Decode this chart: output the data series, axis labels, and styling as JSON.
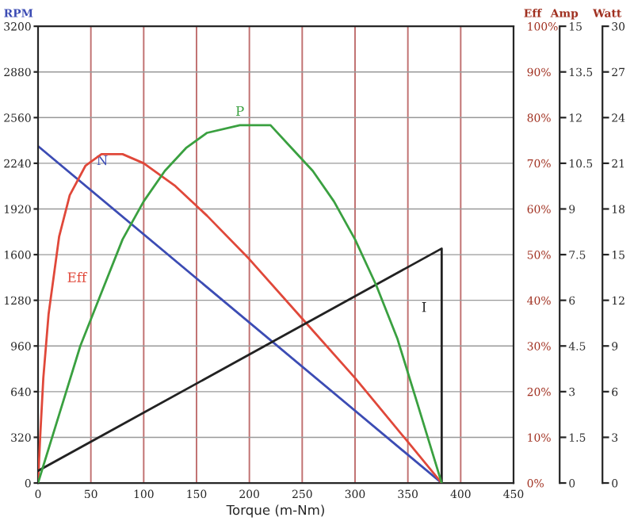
{
  "chart_data": [
    {
      "type": "line",
      "xlabel": "Torque (m-Nm)",
      "ylabel": "RPM",
      "y2label": "Eff",
      "y3label": "Amp",
      "xlim": [
        0,
        450
      ],
      "xticks": [
        0,
        50,
        100,
        150,
        200,
        250,
        300,
        350,
        400,
        450
      ],
      "ylim": [
        0,
        3200
      ],
      "yticks": [
        0,
        320,
        640,
        960,
        1280,
        1600,
        1920,
        2240,
        2560,
        2880,
        3200
      ],
      "y2lim": [
        0,
        100
      ],
      "y2ticks": [
        {
          "value": 0,
          "label": "0%"
        },
        {
          "value": 10,
          "label": "10%"
        },
        {
          "value": 20,
          "label": "20%"
        },
        {
          "value": 30,
          "label": "30%"
        },
        {
          "value": 40,
          "label": "40%"
        },
        {
          "value": 50,
          "label": "50%"
        },
        {
          "value": 60,
          "label": "60%"
        },
        {
          "value": 70,
          "label": "70%"
        },
        {
          "value": 80,
          "label": "80%"
        },
        {
          "value": 90,
          "label": "90%"
        },
        {
          "value": 100,
          "label": "100%"
        }
      ],
      "y3lim": [
        0,
        15
      ],
      "y3ticks": [
        0,
        1.5,
        3,
        4.5,
        6,
        7.5,
        9,
        10.5,
        12,
        13.5,
        15
      ],
      "grid": true,
      "legend": false,
      "marker": "none",
      "line_style": "solid",
      "series": [
        {
          "name": "N",
          "color": "#3c4cb4",
          "x": [
            0,
            382
          ],
          "values": [
            2360,
            0
          ]
        },
        {
          "name": "Eff",
          "color": "#e0483a",
          "axis": "y2",
          "x": [
            0,
            2,
            5,
            10,
            20,
            30,
            45,
            60,
            80,
            100,
            130,
            160,
            200,
            250,
            300,
            350,
            382
          ],
          "values": [
            0,
            10,
            23,
            37,
            54,
            63,
            69.5,
            72,
            72,
            70,
            65,
            58.5,
            49,
            36,
            23,
            9,
            0
          ]
        },
        {
          "name": "I",
          "color": "#222222",
          "axis": "y3",
          "x": [
            0,
            382,
            382
          ],
          "values": [
            0.4,
            7.7,
            0
          ]
        }
      ]
    },
    {
      "type": "line",
      "ylabel": "Watt",
      "xlim": [
        0,
        450
      ],
      "ylim": [
        0,
        30
      ],
      "yticks": [
        0,
        3,
        6,
        9,
        12,
        15,
        18,
        21,
        24,
        27,
        30
      ],
      "tick_labels": "y",
      "legend": false,
      "marker": "none",
      "line_style": "solid",
      "series": [
        {
          "name": "P",
          "color": "#3aa040",
          "x": [
            0,
            20,
            40,
            60,
            80,
            100,
            120,
            140,
            160,
            191,
            220,
            240,
            260,
            280,
            300,
            320,
            340,
            360,
            382
          ],
          "values": [
            0,
            4.5,
            9,
            12.5,
            16,
            18.5,
            20.5,
            22,
            23,
            23.5,
            23.5,
            22,
            20.5,
            18.5,
            16,
            13,
            9.5,
            5,
            0
          ]
        }
      ]
    }
  ]
}
